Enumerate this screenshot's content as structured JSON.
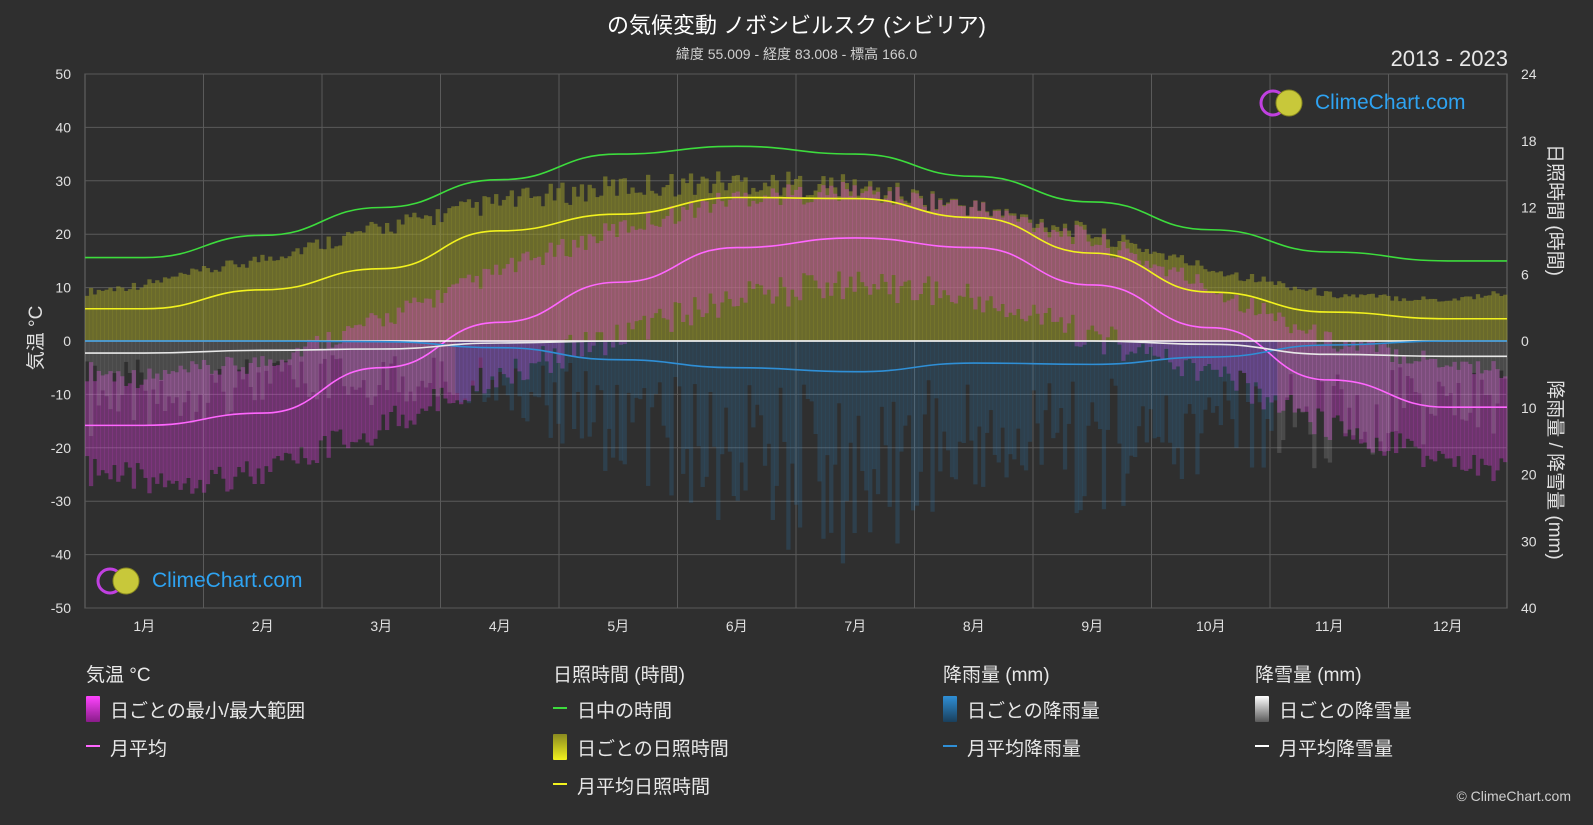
{
  "header": {
    "title": "の気候変動 ノボシビルスク (シビリア)",
    "subtitle": "緯度 55.009 - 経度 83.008 - 標高 166.0",
    "year_range": "2013 - 2023"
  },
  "logo": {
    "text": "ClimeChart.com"
  },
  "copyright": "© ClimeChart.com",
  "legend": {
    "temperature": {
      "title": "気温 °C",
      "range_label": "日ごとの最小/最大範囲",
      "mean_label": "月平均"
    },
    "sunshine": {
      "title": "日照時間 (時間)",
      "daylight_label": "日中の時間",
      "daily_label": "日ごとの日照時間",
      "mean_label": "月平均日照時間"
    },
    "rain": {
      "title": "降雨量 (mm)",
      "daily_label": "日ごとの降雨量",
      "mean_label": "月平均降雨量"
    },
    "snow": {
      "title": "降雪量 (mm)",
      "daily_label": "日ごとの降雪量",
      "mean_label": "月平均降雪量"
    }
  },
  "colors": {
    "background": "#2f2f2f",
    "grid": "#5a5a5a",
    "temp_range": "#e040e0",
    "temp_mean": "#ff66ff",
    "daylight": "#3ddc3d",
    "sunshine_fill": "#9b9b2a",
    "sunshine_mean": "#f2f21e",
    "rain": "#2f8fd6",
    "snow": "#c8c8c8",
    "logo_blue": "#2ea3f2"
  },
  "chart_data": {
    "type": "line",
    "categories": [
      "1月",
      "2月",
      "3月",
      "4月",
      "5月",
      "6月",
      "7月",
      "8月",
      "9月",
      "10月",
      "11月",
      "12月"
    ],
    "y_left": {
      "label": "気温 °C",
      "ylim": [
        -50,
        50
      ],
      "ticks": [
        -50,
        -40,
        -30,
        -20,
        -10,
        0,
        10,
        20,
        30,
        40,
        50
      ]
    },
    "y_right_top": {
      "label": "日照時間 (時間)",
      "ylim": [
        0,
        24
      ],
      "ticks": [
        0,
        6,
        12,
        18,
        24
      ]
    },
    "y_right_bottom": {
      "label": "降雨量 / 降雪量 (mm)",
      "ylim": [
        0,
        40
      ],
      "ticks": [
        0,
        10,
        20,
        30,
        40
      ]
    },
    "grid": true,
    "series": [
      {
        "name": "日中の時間",
        "axis": "sun",
        "values": [
          7.5,
          9.5,
          12.0,
          14.5,
          16.8,
          17.5,
          16.8,
          14.8,
          12.5,
          10.0,
          8.0,
          7.2
        ]
      },
      {
        "name": "月平均日照時間",
        "axis": "sun",
        "values": [
          2.9,
          4.6,
          6.5,
          9.9,
          11.4,
          12.9,
          12.8,
          11.1,
          7.9,
          4.4,
          2.6,
          2.0
        ]
      },
      {
        "name": "月平均",
        "axis": "temp",
        "values": [
          -15.8,
          -13.5,
          -5.0,
          3.5,
          11.0,
          17.5,
          19.3,
          17.5,
          10.5,
          2.5,
          -7.3,
          -12.4
        ]
      },
      {
        "name": "月平均降雨量",
        "axis": "precip",
        "values": [
          0.0,
          0.0,
          0.1,
          1.0,
          2.8,
          4.0,
          4.6,
          3.3,
          3.5,
          2.4,
          0.6,
          0.0
        ]
      },
      {
        "name": "月平均降雪量",
        "axis": "precip",
        "values": [
          1.8,
          1.4,
          1.2,
          0.3,
          0.0,
          0.0,
          0.0,
          0.0,
          0.0,
          0.5,
          2.0,
          2.3
        ]
      }
    ],
    "temp_daily_range": {
      "min": [
        -23,
        -22,
        -13,
        -3,
        4,
        11,
        14,
        11,
        4,
        -3,
        -13,
        -20
      ],
      "max": [
        -9,
        -6,
        2,
        11,
        19,
        25,
        26,
        23,
        17,
        8,
        -2,
        -6
      ]
    },
    "sunshine_daily_max": [
      5.5,
      8.0,
      11.0,
      13.5,
      15.0,
      15.5,
      15.0,
      13.0,
      10.5,
      7.0,
      4.5,
      4.0
    ]
  }
}
